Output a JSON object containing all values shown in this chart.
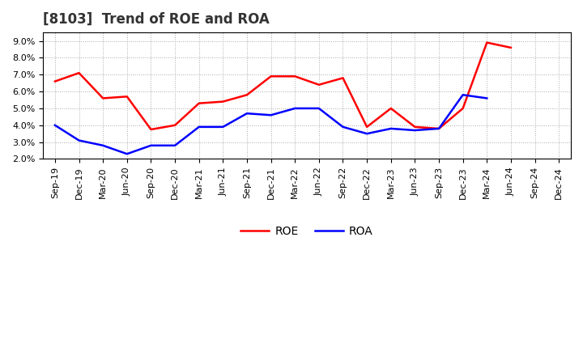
{
  "title": "[8103]  Trend of ROE and ROA",
  "x_labels": [
    "Sep-19",
    "Dec-19",
    "Mar-20",
    "Jun-20",
    "Sep-20",
    "Dec-20",
    "Mar-21",
    "Jun-21",
    "Sep-21",
    "Dec-21",
    "Mar-22",
    "Jun-22",
    "Sep-22",
    "Dec-22",
    "Mar-23",
    "Jun-23",
    "Sep-23",
    "Dec-23",
    "Mar-24",
    "Jun-24",
    "Sep-24",
    "Dec-24"
  ],
  "roe_indices": [
    0,
    1,
    2,
    3,
    4,
    5,
    6,
    7,
    8,
    9,
    10,
    11,
    12,
    13,
    14,
    15,
    16,
    17,
    18,
    19,
    20,
    21
  ],
  "roe": [
    6.6,
    7.1,
    5.6,
    5.7,
    3.75,
    4.0,
    5.3,
    5.4,
    5.8,
    6.9,
    6.9,
    6.4,
    6.8,
    3.9,
    5.0,
    3.9,
    3.8,
    5.0,
    8.9,
    8.6,
    null,
    null
  ],
  "roa_indices": [
    0,
    1,
    2,
    3,
    4,
    5,
    6,
    7,
    8,
    9,
    10,
    11,
    12,
    13,
    14,
    15,
    16,
    17,
    18,
    19,
    20,
    21
  ],
  "roa": [
    4.0,
    3.1,
    2.8,
    2.3,
    2.8,
    2.8,
    3.9,
    3.9,
    4.7,
    4.6,
    5.0,
    5.0,
    3.9,
    3.5,
    3.8,
    3.7,
    3.8,
    5.8,
    5.6,
    null,
    null,
    null
  ],
  "roe_color": "#ff0000",
  "roa_color": "#0000ff",
  "ylim": [
    2.0,
    9.5
  ],
  "yticks": [
    2.0,
    3.0,
    4.0,
    5.0,
    6.0,
    7.0,
    8.0,
    9.0
  ],
  "background_color": "#ffffff",
  "grid_color": "#aaaaaa",
  "title_fontsize": 12,
  "axis_fontsize": 8,
  "legend_fontsize": 10,
  "line_width": 1.8
}
